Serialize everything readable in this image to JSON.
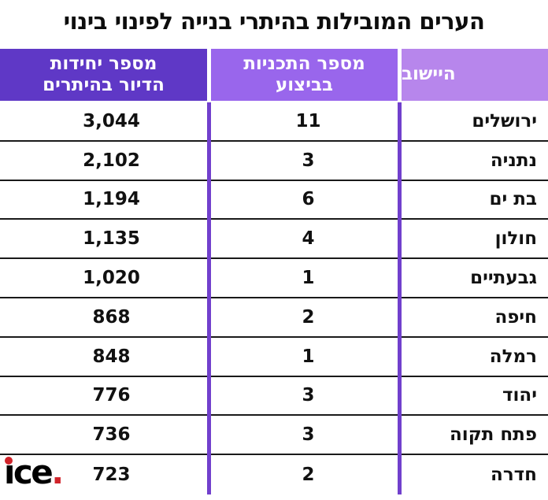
{
  "title": "הערים המובילות בהיתרי בנייה לפינוי בינוי",
  "chart_data": {
    "type": "table",
    "title": "הערים המובילות בהיתרי בנייה לפינוי בינוי",
    "columns": [
      {
        "key": "city",
        "label": "היישוב"
      },
      {
        "key": "plans",
        "label": "מספר התכניות\nבביצוע"
      },
      {
        "key": "units",
        "label": "מספר יחידות\nהדיור בהיתרים"
      }
    ],
    "rows": [
      {
        "city": "ירושלים",
        "plans": "11",
        "units": "3,044"
      },
      {
        "city": "נתניה",
        "plans": "3",
        "units": "2,102"
      },
      {
        "city": "בת ים",
        "plans": "6",
        "units": "1,194"
      },
      {
        "city": "חולון",
        "plans": "4",
        "units": "1,135"
      },
      {
        "city": "גבעתיים",
        "plans": "1",
        "units": "1,020"
      },
      {
        "city": "חיפה",
        "plans": "2",
        "units": "868"
      },
      {
        "city": "רמלה",
        "plans": "1",
        "units": "848"
      },
      {
        "city": "יהוד",
        "plans": "3",
        "units": "776"
      },
      {
        "city": "פתח תקוה",
        "plans": "3",
        "units": "736"
      },
      {
        "city": "חדרה",
        "plans": "2",
        "units": "723"
      }
    ]
  },
  "logo": {
    "text_i": "ı",
    "text_ce": "ce",
    "text_period": "."
  },
  "colors": {
    "header_city_bg": "#b786ec",
    "header_plans_bg": "#9966ec",
    "header_units_bg": "#5f38c6",
    "divider_bar": "#7140cd",
    "row_line": "#1a1a1a",
    "title_color": "#0d0d0d",
    "logo_red": "#d0232a"
  }
}
